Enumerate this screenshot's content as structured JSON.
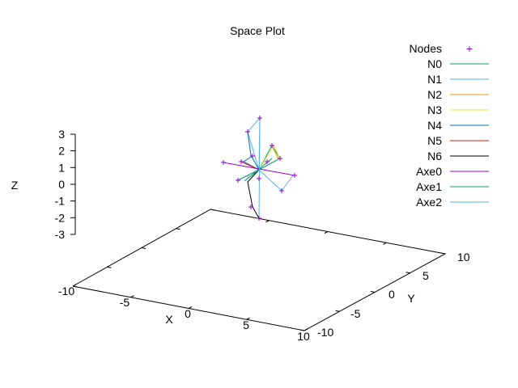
{
  "chart_data": {
    "type": "scatter",
    "projection": "3d",
    "title": "Space Plot",
    "xlabel": "X",
    "ylabel": "Y",
    "zlabel": "Z",
    "xlim": [
      -10,
      10
    ],
    "ylim": [
      -10,
      10
    ],
    "zlim": [
      -3,
      3
    ],
    "x_ticks": [
      "-10",
      "-5",
      "0",
      "5",
      "10"
    ],
    "y_ticks": [
      "-10",
      "-5",
      "0",
      "5",
      "10"
    ],
    "z_ticks": [
      "3",
      "2",
      "1",
      "0",
      "-1",
      "-2",
      "-3"
    ],
    "grid": false,
    "legend_position": "top-right",
    "series": [
      {
        "name": "Nodes",
        "style": "points",
        "marker": "+",
        "color": "#9400d3"
      },
      {
        "name": "N0",
        "style": "lines",
        "color": "#009e73"
      },
      {
        "name": "N1",
        "style": "lines",
        "color": "#56b4e9"
      },
      {
        "name": "N2",
        "style": "lines",
        "color": "#e69f00"
      },
      {
        "name": "N3",
        "style": "lines",
        "color": "#f0e442"
      },
      {
        "name": "N4",
        "style": "lines",
        "color": "#0072b2"
      },
      {
        "name": "N5",
        "style": "lines",
        "color": "#e51e10"
      },
      {
        "name": "N6",
        "style": "lines",
        "color": "#000000"
      },
      {
        "name": "Axe0",
        "style": "lines",
        "color": "#9400d3"
      },
      {
        "name": "Axe1",
        "style": "lines",
        "color": "#009e73"
      },
      {
        "name": "Axe2",
        "style": "lines",
        "color": "#56b4e9"
      }
    ]
  }
}
